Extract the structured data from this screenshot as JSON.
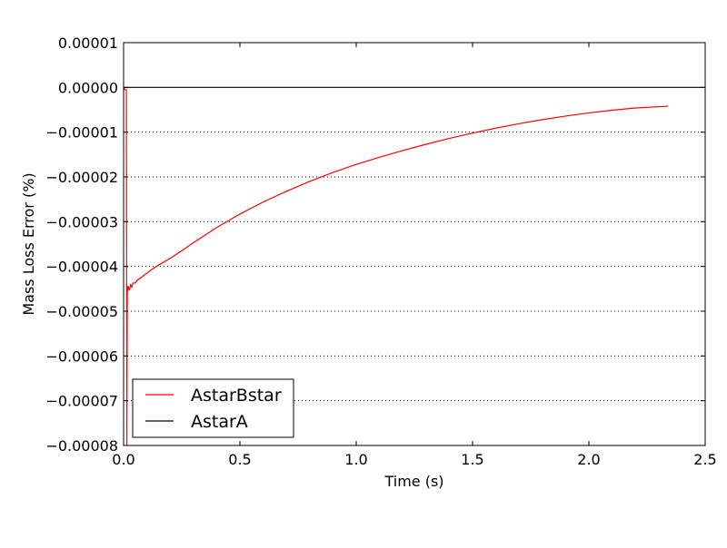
{
  "chart_data": {
    "type": "line",
    "title": "",
    "xlabel": "Time (s)",
    "ylabel": "Mass Loss Error (%)",
    "xlim": [
      0.0,
      2.5
    ],
    "ylim": [
      -8e-05,
      1e-05
    ],
    "x_ticks": [
      0.0,
      0.5,
      1.0,
      1.5,
      2.0,
      2.5
    ],
    "x_tick_labels": [
      "0.0",
      "0.5",
      "1.0",
      "1.5",
      "2.0",
      "2.5"
    ],
    "y_ticks": [
      1e-05,
      0.0,
      -1e-05,
      -2e-05,
      -3e-05,
      -4e-05,
      -5e-05,
      -6e-05,
      -7e-05,
      -8e-05
    ],
    "y_tick_labels": [
      "0.00001",
      "0.00000",
      "−0.00001",
      "−0.00002",
      "−0.00003",
      "−0.00004",
      "−0.00005",
      "−0.00006",
      "−0.00007",
      "−0.00008"
    ],
    "grid": "horizontal dotted",
    "legend_position": "lower-left",
    "series": [
      {
        "name": "AstarBstar",
        "color": "#ff0000",
        "x": [
          0.0,
          0.005,
          0.012,
          0.014,
          0.016,
          0.018,
          0.02,
          0.025,
          0.03,
          0.035,
          0.04,
          0.05,
          0.06,
          0.08,
          0.1,
          0.12,
          0.15,
          0.2,
          0.25,
          0.3,
          0.4,
          0.5,
          0.6,
          0.7,
          0.8,
          0.9,
          1.0,
          1.1,
          1.2,
          1.3,
          1.4,
          1.5,
          1.6,
          1.7,
          1.8,
          1.9,
          2.0,
          2.1,
          2.2,
          2.34
        ],
        "y": [
          0.0,
          -5e-07,
          -5e-07,
          -8e-05,
          -4.45e-05,
          -4.55e-05,
          -4.45e-05,
          -4.52e-05,
          -4.4e-05,
          -4.47e-05,
          -4.37e-05,
          -4.37e-05,
          -4.3e-05,
          -4.23e-05,
          -4.15e-05,
          -4.07e-05,
          -3.97e-05,
          -3.82e-05,
          -3.65e-05,
          -3.47e-05,
          -3.13e-05,
          -2.83e-05,
          -2.56e-05,
          -2.32e-05,
          -2.1e-05,
          -1.9e-05,
          -1.72e-05,
          -1.56e-05,
          -1.41e-05,
          -1.27e-05,
          -1.14e-05,
          -1.02e-05,
          -9.1e-06,
          -8.1e-06,
          -7.2e-06,
          -6.4e-06,
          -5.7e-06,
          -5.1e-06,
          -4.6e-06,
          -4.2e-06
        ]
      },
      {
        "name": "AstarA",
        "color": "#000000",
        "x": [
          0.0,
          2.5
        ],
        "y": [
          0.0,
          0.0
        ]
      }
    ]
  }
}
